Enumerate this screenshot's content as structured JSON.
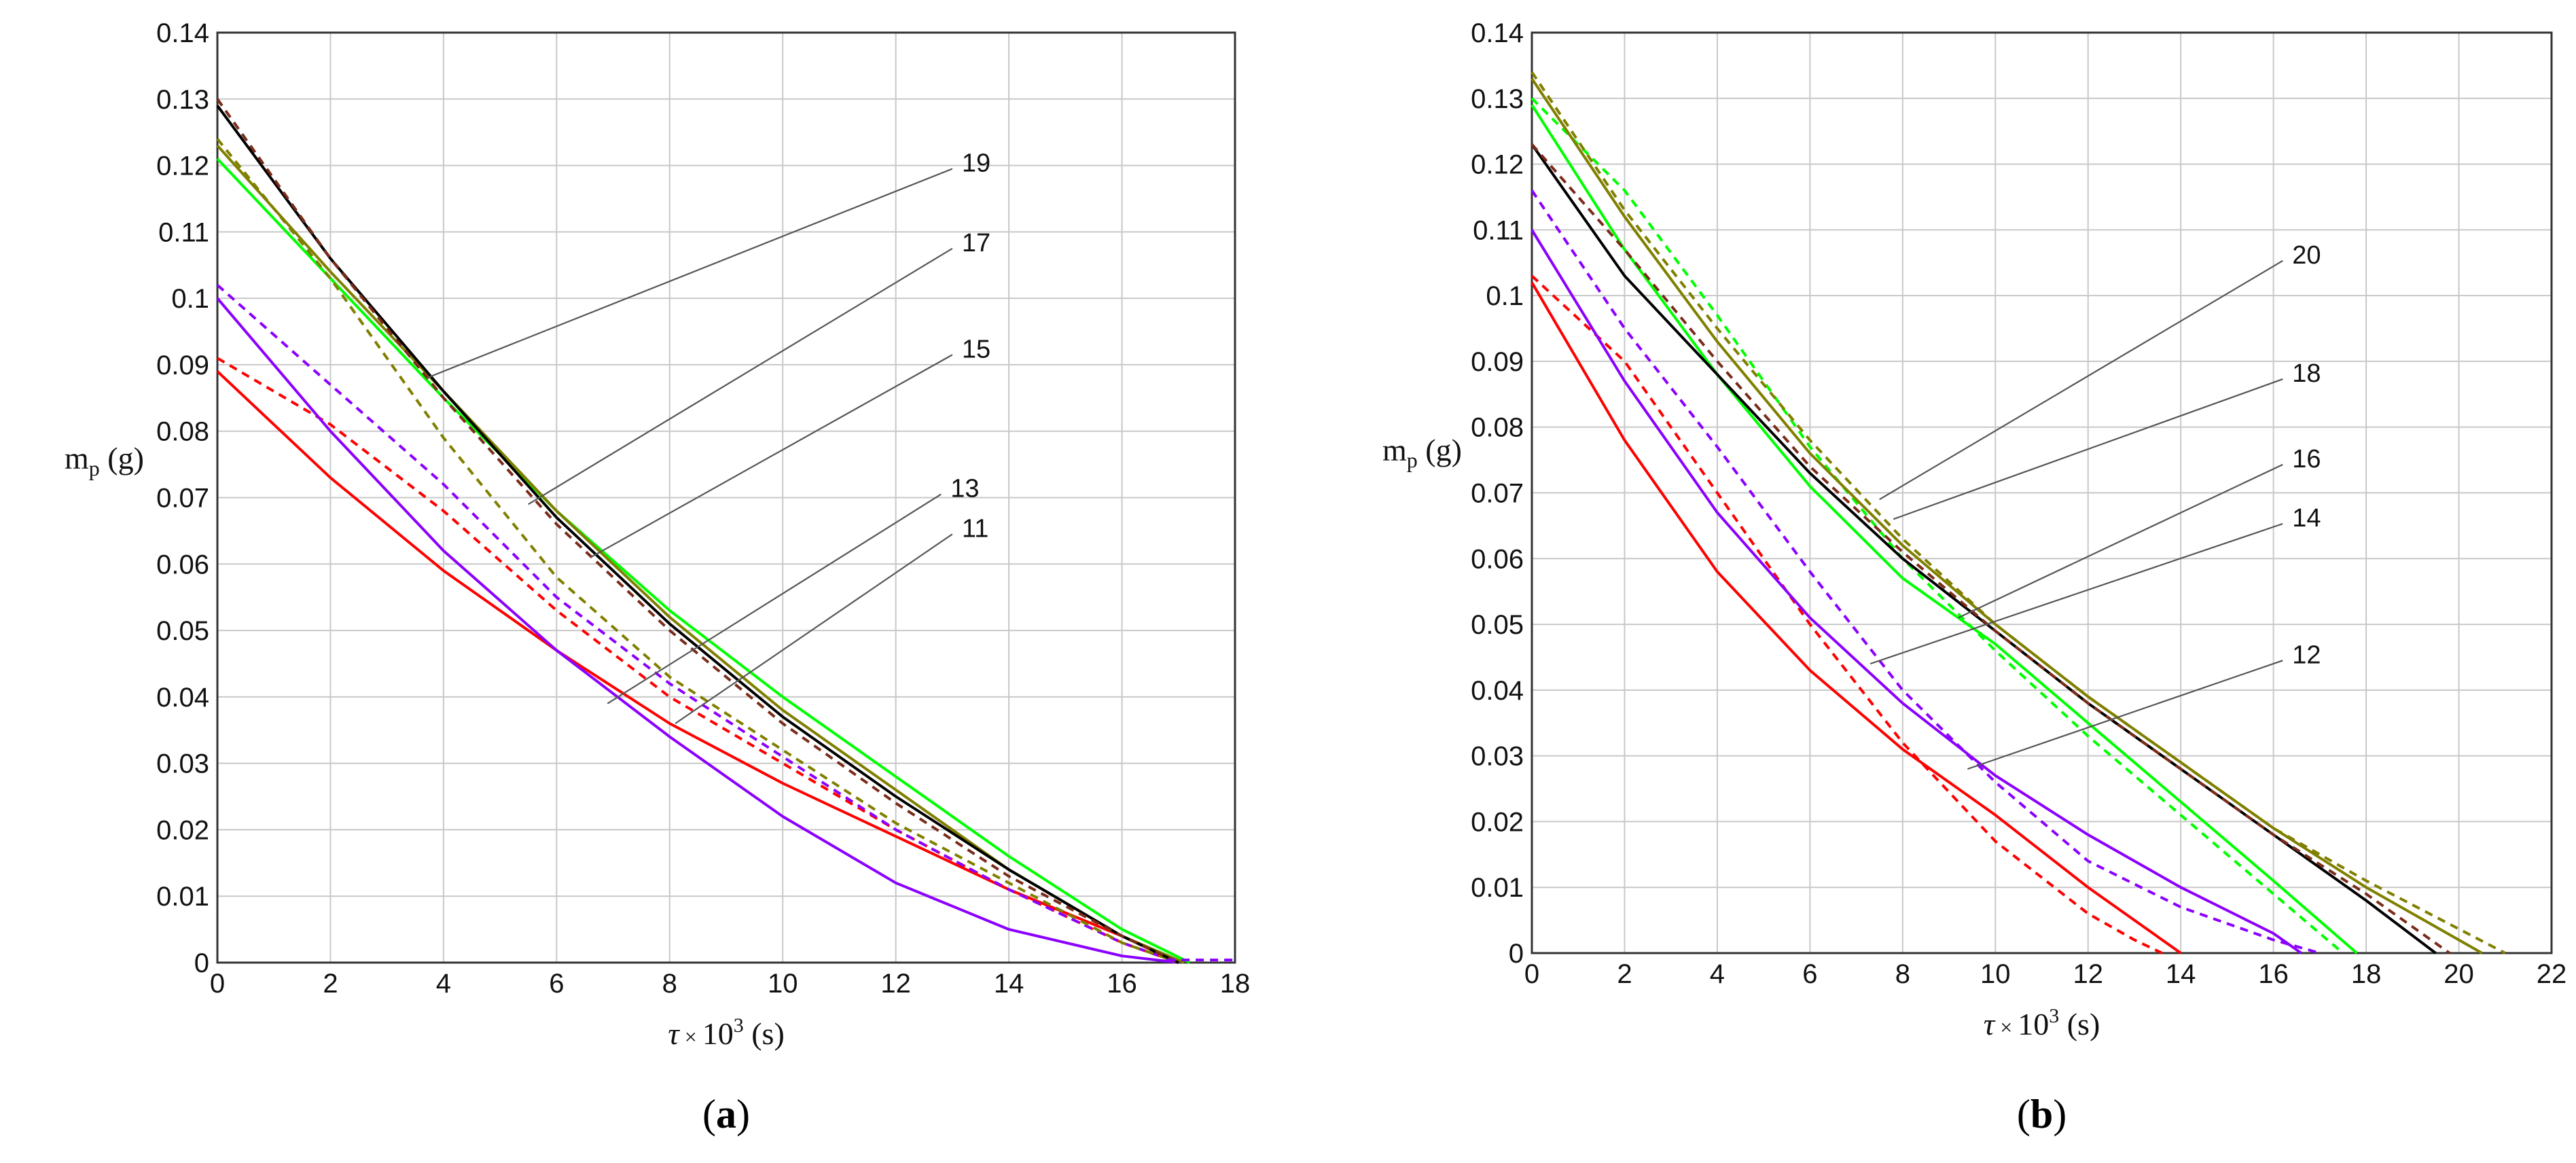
{
  "chart_data": [
    {
      "type": "line",
      "panel_label": "(a)",
      "ylabel": "m_p (g)",
      "xlabel": "τ × 10³ (s)",
      "xlim": [
        0,
        18
      ],
      "ylim": [
        0,
        0.14
      ],
      "xticks": [
        "0",
        "2",
        "4",
        "6",
        "8",
        "10",
        "12",
        "14",
        "16",
        "18"
      ],
      "yticks": [
        "0",
        "0.01",
        "0.02",
        "0.03",
        "0.04",
        "0.05",
        "0.06",
        "0.07",
        "0.08",
        "0.09",
        "0.1",
        "0.11",
        "0.12",
        "0.13",
        "0.14"
      ],
      "grid": true,
      "series": [
        {
          "color": "#ff0000",
          "dash": false,
          "x": [
            0,
            2,
            4,
            6,
            8,
            10,
            12,
            14,
            16,
            17
          ],
          "y": [
            0.089,
            0.073,
            0.059,
            0.047,
            0.036,
            0.027,
            0.019,
            0.011,
            0.004,
            0.0
          ]
        },
        {
          "color": "#ff0000",
          "dash": true,
          "x": [
            0,
            2,
            4,
            6,
            8,
            10,
            12,
            14,
            16,
            17
          ],
          "y": [
            0.091,
            0.081,
            0.068,
            0.053,
            0.04,
            0.03,
            0.02,
            0.011,
            0.003,
            0.0
          ]
        },
        {
          "color": "#8b00ff",
          "dash": false,
          "x": [
            0,
            2,
            4,
            6,
            8,
            10,
            12,
            14,
            16,
            17
          ],
          "y": [
            0.1,
            0.08,
            0.062,
            0.047,
            0.034,
            0.022,
            0.012,
            0.005,
            0.001,
            0.0
          ]
        },
        {
          "color": "#8b00ff",
          "dash": true,
          "x": [
            0,
            2,
            4,
            6,
            8,
            10,
            12,
            14,
            16,
            17
          ],
          "y": [
            0.102,
            0.087,
            0.072,
            0.055,
            0.042,
            0.031,
            0.02,
            0.011,
            0.003,
            0.0
          ]
        },
        {
          "color": "#00ff00",
          "dash": false,
          "x": [
            0,
            2,
            4,
            6,
            8,
            10,
            12,
            14,
            16,
            17.2
          ],
          "y": [
            0.121,
            0.103,
            0.085,
            0.068,
            0.053,
            0.04,
            0.028,
            0.016,
            0.005,
            0.0
          ]
        },
        {
          "color": "#7f7f00",
          "dash": false,
          "x": [
            0,
            2,
            4,
            6,
            8,
            10,
            12,
            14,
            16,
            17.1
          ],
          "y": [
            0.123,
            0.104,
            0.086,
            0.068,
            0.052,
            0.038,
            0.026,
            0.014,
            0.004,
            0.0
          ]
        },
        {
          "color": "#7f7f00",
          "dash": true,
          "x": [
            0,
            2,
            4,
            6,
            8,
            10,
            12,
            14,
            16,
            17
          ],
          "y": [
            0.124,
            0.103,
            0.079,
            0.058,
            0.043,
            0.032,
            0.021,
            0.012,
            0.003,
            0.0
          ]
        },
        {
          "color": "#000000",
          "dash": false,
          "x": [
            0,
            2,
            4,
            6,
            8,
            10,
            12,
            14,
            16,
            17
          ],
          "y": [
            0.129,
            0.106,
            0.086,
            0.067,
            0.051,
            0.037,
            0.025,
            0.014,
            0.004,
            0.0
          ]
        },
        {
          "color": "#7a2b1a",
          "dash": true,
          "x": [
            0,
            2,
            4,
            6,
            8,
            10,
            12,
            14,
            16,
            17
          ],
          "y": [
            0.13,
            0.106,
            0.085,
            0.066,
            0.05,
            0.036,
            0.024,
            0.013,
            0.004,
            0.0
          ]
        },
        {
          "color": "#8b00ff",
          "dash": true,
          "x": [
            16.8,
            17.2,
            18
          ],
          "y": [
            0.0004,
            0.0004,
            0.0004
          ]
        }
      ],
      "callouts": [
        {
          "label": "19",
          "from": [
            3.7,
            0.088
          ],
          "to": [
            13.0,
            0.1195
          ]
        },
        {
          "label": "17",
          "from": [
            5.5,
            0.069
          ],
          "to": [
            13.0,
            0.1075
          ]
        },
        {
          "label": "15",
          "from": [
            6.6,
            0.061
          ],
          "to": [
            13.0,
            0.0915
          ]
        },
        {
          "label": "13",
          "from": [
            6.9,
            0.039
          ],
          "to": [
            12.8,
            0.0705
          ]
        },
        {
          "label": "11",
          "from": [
            8.1,
            0.036
          ],
          "to": [
            13.0,
            0.0645
          ]
        }
      ]
    },
    {
      "type": "line",
      "panel_label": "(b)",
      "ylabel": "m_p (g)",
      "xlabel": "τ × 10³ (s)",
      "xlim": [
        0,
        22
      ],
      "ylim": [
        0,
        0.14
      ],
      "xticks": [
        "0",
        "2",
        "4",
        "6",
        "8",
        "10",
        "12",
        "14",
        "16",
        "18",
        "20",
        "22"
      ],
      "yticks": [
        "0",
        "0.01",
        "0.02",
        "0.03",
        "0.04",
        "0.05",
        "0.06",
        "0.07",
        "0.08",
        "0.09",
        "0.1",
        "0.11",
        "0.12",
        "0.13",
        "0.14"
      ],
      "grid": true,
      "series": [
        {
          "color": "#ff0000",
          "dash": false,
          "x": [
            0,
            2,
            4,
            6,
            8,
            10,
            12,
            13,
            14
          ],
          "y": [
            0.102,
            0.078,
            0.058,
            0.043,
            0.031,
            0.021,
            0.01,
            0.005,
            0.0
          ]
        },
        {
          "color": "#ff0000",
          "dash": true,
          "x": [
            0,
            2,
            4,
            6,
            8,
            10,
            12,
            13,
            13.6
          ],
          "y": [
            0.103,
            0.09,
            0.07,
            0.05,
            0.032,
            0.017,
            0.006,
            0.002,
            0.0
          ]
        },
        {
          "color": "#8b00ff",
          "dash": false,
          "x": [
            0,
            2,
            4,
            6,
            8,
            10,
            12,
            14,
            16,
            16.6
          ],
          "y": [
            0.11,
            0.087,
            0.067,
            0.051,
            0.038,
            0.027,
            0.018,
            0.01,
            0.003,
            0.0
          ]
        },
        {
          "color": "#8b00ff",
          "dash": true,
          "x": [
            0,
            2,
            4,
            6,
            8,
            10,
            12,
            14,
            16,
            17
          ],
          "y": [
            0.116,
            0.095,
            0.077,
            0.058,
            0.04,
            0.026,
            0.014,
            0.007,
            0.002,
            0.0
          ]
        },
        {
          "color": "#00ff00",
          "dash": false,
          "x": [
            0,
            2,
            4,
            6,
            8,
            10,
            12,
            14,
            16,
            17.8
          ],
          "y": [
            0.129,
            0.107,
            0.088,
            0.071,
            0.057,
            0.047,
            0.035,
            0.023,
            0.011,
            0.0
          ]
        },
        {
          "color": "#00ff00",
          "dash": true,
          "x": [
            0,
            2,
            4,
            6,
            8,
            10,
            12,
            14,
            16,
            17.5
          ],
          "y": [
            0.13,
            0.116,
            0.097,
            0.077,
            0.06,
            0.046,
            0.033,
            0.021,
            0.009,
            0.0
          ]
        },
        {
          "color": "#000000",
          "dash": false,
          "x": [
            0,
            2,
            4,
            6,
            8,
            10,
            12,
            14,
            16,
            18,
            19.5
          ],
          "y": [
            0.123,
            0.103,
            0.088,
            0.073,
            0.06,
            0.049,
            0.038,
            0.028,
            0.018,
            0.008,
            0.0
          ]
        },
        {
          "color": "#7a2b1a",
          "dash": true,
          "x": [
            0,
            2,
            4,
            6,
            8,
            10,
            12,
            14,
            16,
            18,
            19.8
          ],
          "y": [
            0.123,
            0.107,
            0.09,
            0.074,
            0.061,
            0.049,
            0.038,
            0.028,
            0.018,
            0.009,
            0.0
          ]
        },
        {
          "color": "#7f7f00",
          "dash": false,
          "x": [
            0,
            2,
            4,
            6,
            8,
            10,
            12,
            14,
            16,
            18,
            20.5
          ],
          "y": [
            0.133,
            0.112,
            0.093,
            0.076,
            0.062,
            0.05,
            0.039,
            0.029,
            0.019,
            0.01,
            0.0
          ]
        },
        {
          "color": "#7f7f00",
          "dash": true,
          "x": [
            0,
            2,
            4,
            6,
            8,
            10,
            12,
            14,
            16,
            18,
            21
          ],
          "y": [
            0.134,
            0.113,
            0.095,
            0.078,
            0.063,
            0.05,
            0.039,
            0.029,
            0.019,
            0.011,
            0.0
          ]
        }
      ],
      "callouts": [
        {
          "label": "20",
          "from": [
            7.5,
            0.069
          ],
          "to": [
            16.2,
            0.1053
          ]
        },
        {
          "label": "18",
          "from": [
            7.8,
            0.066
          ],
          "to": [
            16.2,
            0.0873
          ]
        },
        {
          "label": "16",
          "from": [
            9.2,
            0.051
          ],
          "to": [
            16.2,
            0.0743
          ]
        },
        {
          "label": "14",
          "from": [
            7.3,
            0.044
          ],
          "to": [
            16.2,
            0.0653
          ]
        },
        {
          "label": "12",
          "from": [
            9.4,
            0.028
          ],
          "to": [
            16.2,
            0.0445
          ]
        }
      ]
    }
  ]
}
